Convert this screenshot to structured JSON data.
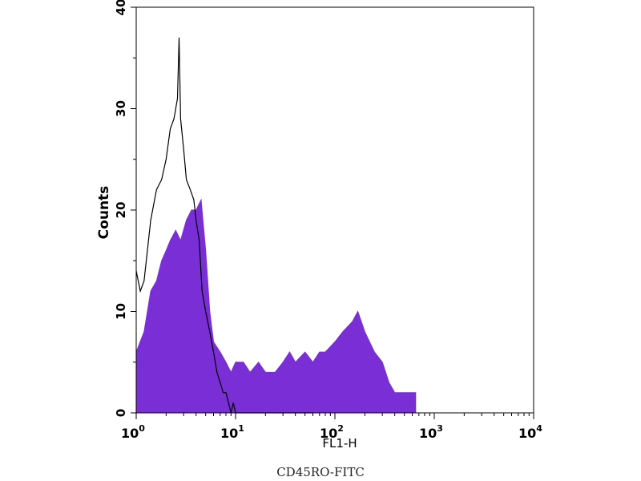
{
  "chart_data": {
    "type": "area",
    "title": "",
    "xlabel": "FL1-H",
    "ylabel": "Counts",
    "caption": "CD45RO-FITC",
    "x_scale": "log",
    "xlim": [
      1,
      10000
    ],
    "ylim": [
      0,
      40
    ],
    "x_ticks": [
      {
        "value": 1,
        "base": "10",
        "exp": "0"
      },
      {
        "value": 10,
        "base": "10",
        "exp": "1"
      },
      {
        "value": 100,
        "base": "10",
        "exp": "2"
      },
      {
        "value": 1000,
        "base": "10",
        "exp": "3"
      },
      {
        "value": 10000,
        "base": "10",
        "exp": "4"
      }
    ],
    "y_ticks": [
      "0",
      "10",
      "20",
      "30",
      "40"
    ],
    "grid": false,
    "legend": "none",
    "colors": {
      "sample_fill": "#7A2FD6",
      "control_line": "#000000"
    },
    "series": [
      {
        "style": "filled",
        "x": [
          1.0,
          1.2,
          1.4,
          1.6,
          1.8,
          2.0,
          2.2,
          2.5,
          2.8,
          3.2,
          3.6,
          4.0,
          4.5,
          5.0,
          5.5,
          6.0,
          7.0,
          8.0,
          9.0,
          10,
          12,
          14,
          17,
          20,
          25,
          30,
          35,
          40,
          50,
          60,
          70,
          80,
          100,
          120,
          150,
          170,
          200,
          250,
          300,
          350,
          400,
          500,
          600,
          650
        ],
        "y": [
          6,
          8,
          12,
          13,
          15,
          16,
          17,
          18,
          17,
          19,
          20,
          20,
          21,
          16,
          10,
          7,
          6,
          5,
          4,
          5,
          5,
          4,
          5,
          4,
          4,
          5,
          6,
          5,
          6,
          5,
          6,
          6,
          7,
          8,
          9,
          10,
          8,
          6,
          5,
          3,
          2,
          2,
          2,
          2
        ]
      },
      {
        "style": "outline",
        "x": [
          1.0,
          1.1,
          1.2,
          1.4,
          1.6,
          1.8,
          2.0,
          2.2,
          2.4,
          2.6,
          2.7,
          2.8,
          3.0,
          3.2,
          3.5,
          3.8,
          4.0,
          4.3,
          4.6,
          5.0,
          5.5,
          6.0,
          6.5,
          7.0,
          7.5,
          8.0,
          8.5,
          9.0,
          9.5,
          10,
          12,
          15,
          20,
          25,
          30,
          40,
          50,
          60
        ],
        "y": [
          14,
          12,
          13,
          19,
          22,
          23,
          25,
          28,
          29,
          31,
          37,
          29,
          26,
          23,
          22,
          21,
          19,
          17,
          12,
          10,
          8,
          6,
          4,
          3,
          2,
          2,
          1,
          0,
          1,
          0,
          0,
          0,
          0,
          0,
          0,
          0,
          0,
          0
        ]
      }
    ]
  }
}
